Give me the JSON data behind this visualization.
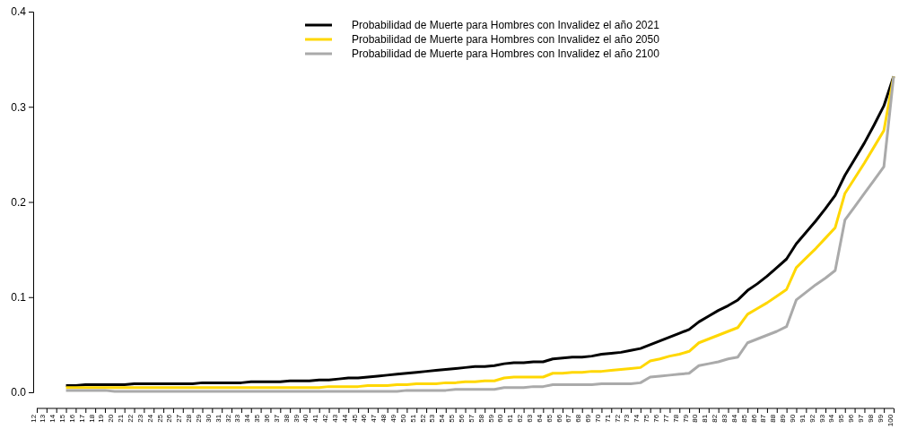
{
  "chart_data": {
    "type": "line",
    "categories": [
      "12",
      "13",
      "14",
      "15",
      "16",
      "17",
      "18",
      "19",
      "20",
      "21",
      "22",
      "23",
      "24",
      "25",
      "26",
      "27",
      "28",
      "29",
      "30",
      "31",
      "32",
      "33",
      "34",
      "35",
      "36",
      "37",
      "38",
      "39",
      "40",
      "41",
      "42",
      "43",
      "44",
      "45",
      "46",
      "47",
      "48",
      "49",
      "50",
      "51",
      "52",
      "53",
      "54",
      "55",
      "56",
      "57",
      "58",
      "59",
      "60",
      "61",
      "62",
      "63",
      "64",
      "65",
      "66",
      "67",
      "68",
      "69",
      "70",
      "71",
      "72",
      "73",
      "74",
      "75",
      "76",
      "77",
      "78",
      "79",
      "80",
      "81",
      "82",
      "83",
      "84",
      "85",
      "86",
      "87",
      "88",
      "89",
      "90",
      "91",
      "92",
      "93",
      "94",
      "95",
      "96",
      "97",
      "98",
      "99",
      "100"
    ],
    "ylim": [
      0,
      0.4
    ],
    "yticks": [
      {
        "value": 0,
        "label": "0.0"
      },
      0.1,
      0.2,
      0.3,
      0.4
    ],
    "grid": false,
    "legend": "top",
    "marker": "none",
    "line_style": "solid",
    "series": [
      {
        "name": "Probabilidad de Muerte para Hombres con Invalidez el año 2021",
        "color": "#000000",
        "values": [
          null,
          null,
          null,
          0.007,
          0.007,
          0.008,
          0.008,
          0.008,
          0.008,
          0.008,
          0.009,
          0.009,
          0.009,
          0.009,
          0.009,
          0.009,
          0.009,
          0.01,
          0.01,
          0.01,
          0.01,
          0.01,
          0.011,
          0.011,
          0.011,
          0.011,
          0.012,
          0.012,
          0.012,
          0.013,
          0.013,
          0.014,
          0.015,
          0.015,
          0.016,
          0.017,
          0.018,
          0.019,
          0.02,
          0.021,
          0.022,
          0.023,
          0.024,
          0.025,
          0.026,
          0.027,
          0.027,
          0.028,
          0.03,
          0.031,
          0.031,
          0.032,
          0.032,
          0.035,
          0.036,
          0.037,
          0.037,
          0.038,
          0.04,
          0.041,
          0.042,
          0.044,
          0.046,
          0.05,
          0.054,
          0.058,
          0.062,
          0.066,
          0.074,
          0.08,
          0.086,
          0.091,
          0.097,
          0.107,
          0.114,
          0.122,
          0.131,
          0.14,
          0.156,
          0.168,
          0.18,
          0.193,
          0.207,
          0.228,
          0.245,
          0.262,
          0.281,
          0.301,
          0.332
        ]
      },
      {
        "name": "Probabilidad de Muerte para Hombres con Invalidez el año 2050",
        "color": "#ffd700",
        "values": [
          null,
          null,
          null,
          0.005,
          0.005,
          0.005,
          0.005,
          0.005,
          0.005,
          0.005,
          0.005,
          0.005,
          0.005,
          0.005,
          0.005,
          0.005,
          0.005,
          0.005,
          0.005,
          0.005,
          0.005,
          0.005,
          0.005,
          0.005,
          0.005,
          0.005,
          0.005,
          0.005,
          0.005,
          0.005,
          0.006,
          0.006,
          0.006,
          0.006,
          0.007,
          0.007,
          0.007,
          0.008,
          0.008,
          0.009,
          0.009,
          0.009,
          0.01,
          0.01,
          0.011,
          0.011,
          0.012,
          0.012,
          0.015,
          0.016,
          0.016,
          0.016,
          0.016,
          0.02,
          0.02,
          0.021,
          0.021,
          0.022,
          0.022,
          0.023,
          0.024,
          0.025,
          0.026,
          0.033,
          0.035,
          0.038,
          0.04,
          0.043,
          0.052,
          0.056,
          0.06,
          0.064,
          0.068,
          0.082,
          0.088,
          0.094,
          0.101,
          0.108,
          0.131,
          0.141,
          0.151,
          0.162,
          0.173,
          0.209,
          0.225,
          0.241,
          0.258,
          0.275,
          0.332
        ]
      },
      {
        "name": "Probabilidad de Muerte para Hombres con Invalidez el año 2100",
        "color": "#aaaaaa",
        "values": [
          null,
          null,
          null,
          0.002,
          0.002,
          0.002,
          0.002,
          0.002,
          0.001,
          0.001,
          0.001,
          0.001,
          0.001,
          0.001,
          0.001,
          0.001,
          0.001,
          0.001,
          0.001,
          0.001,
          0.001,
          0.001,
          0.001,
          0.001,
          0.001,
          0.001,
          0.001,
          0.001,
          0.001,
          0.001,
          0.001,
          0.001,
          0.001,
          0.001,
          0.001,
          0.001,
          0.001,
          0.001,
          0.002,
          0.002,
          0.002,
          0.002,
          0.002,
          0.003,
          0.003,
          0.003,
          0.003,
          0.003,
          0.005,
          0.005,
          0.005,
          0.006,
          0.006,
          0.008,
          0.008,
          0.008,
          0.008,
          0.008,
          0.009,
          0.009,
          0.009,
          0.009,
          0.01,
          0.016,
          0.017,
          0.018,
          0.019,
          0.02,
          0.028,
          0.03,
          0.032,
          0.035,
          0.037,
          0.052,
          0.056,
          0.06,
          0.064,
          0.069,
          0.097,
          0.105,
          0.113,
          0.12,
          0.128,
          0.181,
          0.195,
          0.209,
          0.223,
          0.237,
          0.332
        ]
      }
    ]
  }
}
